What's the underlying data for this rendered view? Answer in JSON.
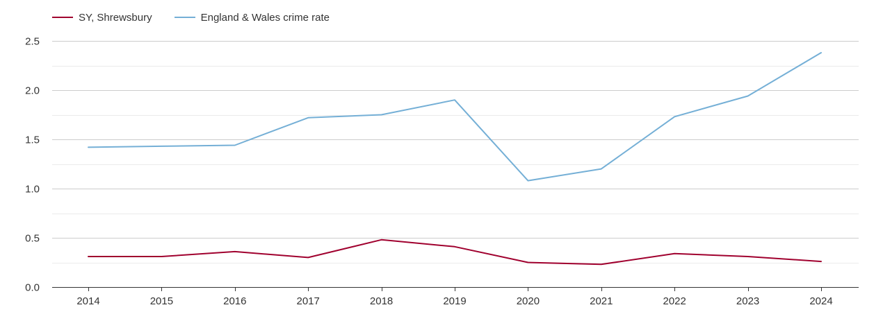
{
  "chart_data": {
    "type": "line",
    "title": "",
    "xlabel": "",
    "ylabel": "",
    "categories": [
      "2014",
      "2015",
      "2016",
      "2017",
      "2018",
      "2019",
      "2020",
      "2021",
      "2022",
      "2023",
      "2024"
    ],
    "series": [
      {
        "name": "SY, Shrewsbury",
        "color": "#a0002e",
        "values": [
          0.31,
          0.31,
          0.36,
          0.3,
          0.48,
          0.41,
          0.25,
          0.23,
          0.34,
          0.31,
          0.26
        ]
      },
      {
        "name": "England & Wales crime rate",
        "color": "#74afd6",
        "values": [
          1.42,
          1.43,
          1.44,
          1.72,
          1.75,
          1.9,
          1.08,
          1.2,
          1.73,
          1.94,
          2.38
        ]
      }
    ],
    "ylim": [
      0,
      2.5
    ],
    "yticks": [
      "0.0",
      "0.5",
      "1.0",
      "1.5",
      "2.0",
      "2.5"
    ],
    "grid": true,
    "legend_position": "top-left"
  }
}
